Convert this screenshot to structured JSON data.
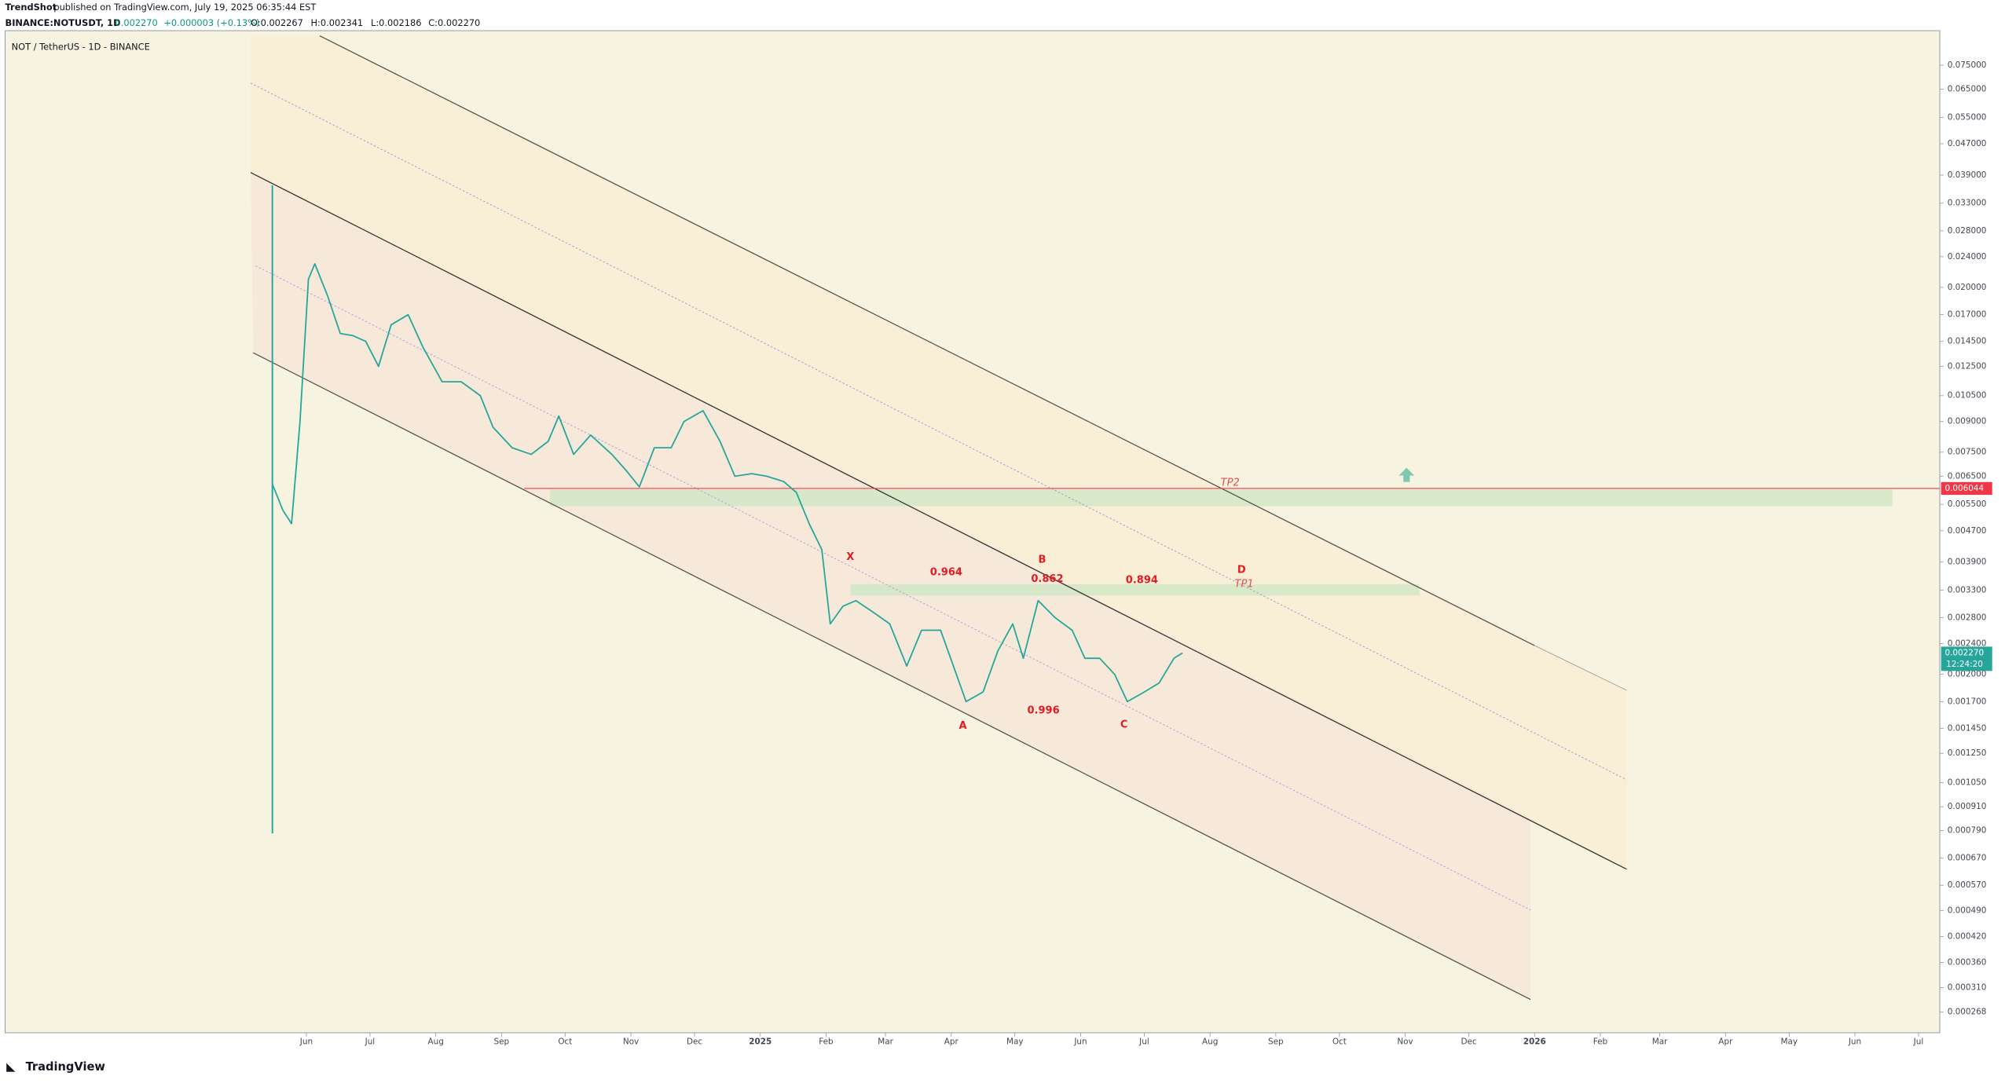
{
  "header": {
    "publisher": "TrendShot",
    "published": "published on TradingView.com, July 19, 2025 06:35:44 EST",
    "symbol": "BINANCE:NOTUSDT, 1D",
    "change": "+0.000003 (+0.13%)",
    "open": "O:0.002267",
    "high": "H:0.002341",
    "low": "L:0.002186",
    "close": "C:0.002270",
    "price": "0.002270"
  },
  "brand": "TradingView",
  "chart_data": {
    "type": "line",
    "title": "NOT / TetherUS - 1D - BINANCE",
    "color": "#26a69a",
    "log_y": true,
    "x": [
      -16,
      -11,
      -7,
      -3,
      1,
      4,
      10,
      16,
      22,
      28,
      34,
      40,
      48,
      55,
      64,
      73,
      82,
      88,
      97,
      106,
      114,
      119,
      126,
      134,
      144,
      151,
      157,
      164,
      172,
      178,
      187,
      195,
      202,
      210,
      217,
      225,
      231,
      237,
      243,
      247,
      253,
      259,
      267,
      275,
      283,
      290,
      299,
      305,
      311,
      319,
      326,
      333,
      338,
      345,
      353,
      361,
      367,
      374,
      381,
      387,
      395,
      402,
      409,
      413
    ],
    "values": [
      0.0062,
      0.0053,
      0.0049,
      0.009,
      0.021,
      0.023,
      0.019,
      0.0152,
      0.015,
      0.0145,
      0.0125,
      0.016,
      0.017,
      0.014,
      0.0114,
      0.0114,
      0.0105,
      0.0087,
      0.0077,
      0.0074,
      0.008,
      0.0093,
      0.0074,
      0.0083,
      0.0074,
      0.0067,
      0.0061,
      0.0077,
      0.0077,
      0.009,
      0.0096,
      0.008,
      0.0065,
      0.0066,
      0.0065,
      0.0063,
      0.0059,
      0.0049,
      0.0042,
      0.0027,
      0.003,
      0.0031,
      0.0029,
      0.0027,
      0.0021,
      0.0026,
      0.0026,
      0.0021,
      0.0017,
      0.0018,
      0.0023,
      0.0027,
      0.0022,
      0.0031,
      0.0028,
      0.0026,
      0.0022,
      0.0022,
      0.002,
      0.0017,
      0.0018,
      0.0019,
      0.0022,
      0.00227
    ],
    "xlim": [
      -142,
      770
    ],
    "xticks": [
      {
        "value": 0,
        "label": "Jun"
      },
      {
        "value": 30,
        "label": "Jul"
      },
      {
        "value": 61,
        "label": "Aug"
      },
      {
        "value": 92,
        "label": "Sep"
      },
      {
        "value": 122,
        "label": "Oct"
      },
      {
        "value": 153,
        "label": "Nov"
      },
      {
        "value": 183,
        "label": "Dec"
      },
      {
        "value": 214,
        "label": "2025"
      },
      {
        "value": 245,
        "label": "Feb"
      },
      {
        "value": 273,
        "label": "Mar"
      },
      {
        "value": 304,
        "label": "Apr"
      },
      {
        "value": 334,
        "label": "May"
      },
      {
        "value": 365,
        "label": "Jun"
      },
      {
        "value": 395,
        "label": "Jul"
      },
      {
        "value": 426,
        "label": "Aug"
      },
      {
        "value": 457,
        "label": "Sep"
      },
      {
        "value": 487,
        "label": "Oct"
      },
      {
        "value": 518,
        "label": "Nov"
      },
      {
        "value": 548,
        "label": "Dec"
      },
      {
        "value": 579,
        "label": "2026"
      },
      {
        "value": 610,
        "label": "Feb"
      },
      {
        "value": 638,
        "label": "Mar"
      },
      {
        "value": 669,
        "label": "Apr"
      },
      {
        "value": 699,
        "label": "May"
      },
      {
        "value": 730,
        "label": "Jun"
      },
      {
        "value": 760,
        "label": "Jul"
      }
    ],
    "ylim": [
      0.000237,
      0.0921
    ],
    "yticks": [
      {
        "value": 0.075,
        "label": "0.075000"
      },
      {
        "value": 0.065,
        "label": "0.065000"
      },
      {
        "value": 0.055,
        "label": "0.055000"
      },
      {
        "value": 0.047,
        "label": "0.047000"
      },
      {
        "value": 0.039,
        "label": "0.039000"
      },
      {
        "value": 0.033,
        "label": "0.033000"
      },
      {
        "value": 0.028,
        "label": "0.028000"
      },
      {
        "value": 0.024,
        "label": "0.024000"
      },
      {
        "value": 0.02,
        "label": "0.020000"
      },
      {
        "value": 0.017,
        "label": "0.017000"
      },
      {
        "value": 0.0145,
        "label": "0.014500"
      },
      {
        "value": 0.0125,
        "label": "0.012500"
      },
      {
        "value": 0.0105,
        "label": "0.010500"
      },
      {
        "value": 0.009,
        "label": "0.009000"
      },
      {
        "value": 0.0075,
        "label": "0.007500"
      },
      {
        "value": 0.0065,
        "label": "0.006500"
      },
      {
        "value": 0.0055,
        "label": "0.005500"
      },
      {
        "value": 0.0047,
        "label": "0.004700"
      },
      {
        "value": 0.0039,
        "label": "0.003900"
      },
      {
        "value": 0.0033,
        "label": "0.003300"
      },
      {
        "value": 0.0028,
        "label": "0.002800"
      },
      {
        "value": 0.0024,
        "label": "0.002400"
      },
      {
        "value": 0.002,
        "label": "0.002000"
      },
      {
        "value": 0.0017,
        "label": "0.001700"
      },
      {
        "value": 0.00145,
        "label": "0.001450"
      },
      {
        "value": 0.00125,
        "label": "0.001250"
      },
      {
        "value": 0.00105,
        "label": "0.001050"
      },
      {
        "value": 0.00091,
        "label": "0.000910"
      },
      {
        "value": 0.00079,
        "label": "0.000790"
      },
      {
        "value": 0.00067,
        "label": "0.000670"
      },
      {
        "value": 0.00057,
        "label": "0.000570"
      },
      {
        "value": 0.00049,
        "label": "0.000490"
      },
      {
        "value": 0.00042,
        "label": "0.000420"
      },
      {
        "value": 0.00036,
        "label": "0.000360"
      },
      {
        "value": 0.00031,
        "label": "0.000310"
      },
      {
        "value": 0.000268,
        "label": "0.000268"
      }
    ],
    "hline": {
      "value": 0.006044,
      "label": "0.006044",
      "color": "#f23645"
    },
    "last_price": {
      "value": 0.00227,
      "label": "0.002270",
      "countdown": "12:24:20"
    },
    "annotations": [
      "X",
      "A",
      "B",
      "C",
      "D",
      "0.964",
      "0.862",
      "0.894",
      "0.996",
      "TP1",
      "TP2"
    ]
  }
}
